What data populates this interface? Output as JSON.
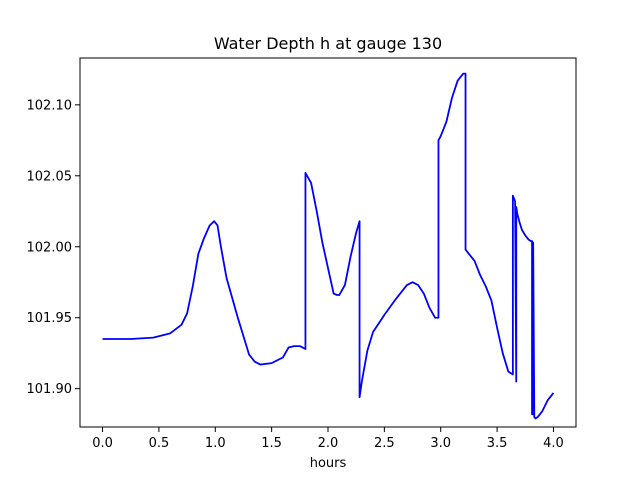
{
  "chart_data": {
    "type": "line",
    "title": "Water Depth h at gauge 130",
    "xlabel": "hours",
    "ylabel": "",
    "xlim": [
      -0.2,
      4.2
    ],
    "ylim": [
      101.873,
      102.133
    ],
    "xticks": [
      0.0,
      0.5,
      1.0,
      1.5,
      2.0,
      2.5,
      3.0,
      3.5,
      4.0
    ],
    "xtick_labels": [
      "0.0",
      "0.5",
      "1.0",
      "1.5",
      "2.0",
      "2.5",
      "3.0",
      "3.5",
      "4.0"
    ],
    "yticks": [
      101.9,
      101.95,
      102.0,
      102.05,
      102.1
    ],
    "ytick_labels": [
      "101.90",
      "101.95",
      "102.00",
      "102.05",
      "102.10"
    ],
    "grid": false,
    "series": [
      {
        "color": "#0000ff",
        "x": [
          0.0,
          0.25,
          0.45,
          0.6,
          0.7,
          0.75,
          0.8,
          0.85,
          0.9,
          0.95,
          0.99,
          1.02,
          1.05,
          1.1,
          1.2,
          1.3,
          1.35,
          1.4,
          1.5,
          1.6,
          1.65,
          1.7,
          1.75,
          1.8,
          1.8,
          1.85,
          1.9,
          1.95,
          2.0,
          2.05,
          2.08,
          2.1,
          2.15,
          2.2,
          2.25,
          2.28,
          2.28,
          2.3,
          2.35,
          2.4,
          2.5,
          2.6,
          2.7,
          2.75,
          2.8,
          2.85,
          2.9,
          2.95,
          2.98,
          2.98,
          3.0,
          3.05,
          3.1,
          3.15,
          3.2,
          3.22,
          3.22,
          3.3,
          3.35,
          3.4,
          3.45,
          3.5,
          3.55,
          3.6,
          3.64,
          3.64,
          3.66,
          3.67,
          3.67,
          3.68,
          3.7,
          3.72,
          3.75,
          3.78,
          3.8,
          3.81,
          3.81,
          3.82,
          3.82,
          3.83,
          3.84,
          3.86,
          3.9,
          3.95,
          4.0
        ],
        "y": [
          101.935,
          101.935,
          101.936,
          101.939,
          101.945,
          101.953,
          101.972,
          101.995,
          102.006,
          102.015,
          102.018,
          102.015,
          102.0,
          101.978,
          101.95,
          101.924,
          101.919,
          101.917,
          101.918,
          101.922,
          101.929,
          101.93,
          101.93,
          101.928,
          102.052,
          102.045,
          102.025,
          102.003,
          101.985,
          101.967,
          101.966,
          101.966,
          101.973,
          101.993,
          102.01,
          102.018,
          101.894,
          101.905,
          101.927,
          101.94,
          101.952,
          101.963,
          101.973,
          101.975,
          101.973,
          101.967,
          101.957,
          101.95,
          101.95,
          102.075,
          102.078,
          102.088,
          102.105,
          102.117,
          102.122,
          102.122,
          101.998,
          101.99,
          101.98,
          101.972,
          101.962,
          101.943,
          101.925,
          101.912,
          101.91,
          102.036,
          102.032,
          101.905,
          102.028,
          102.023,
          102.017,
          102.012,
          102.008,
          102.005,
          102.004,
          102.004,
          101.882,
          101.882,
          102.003,
          101.88,
          101.879,
          101.88,
          101.884,
          101.892,
          101.897
        ]
      }
    ]
  }
}
